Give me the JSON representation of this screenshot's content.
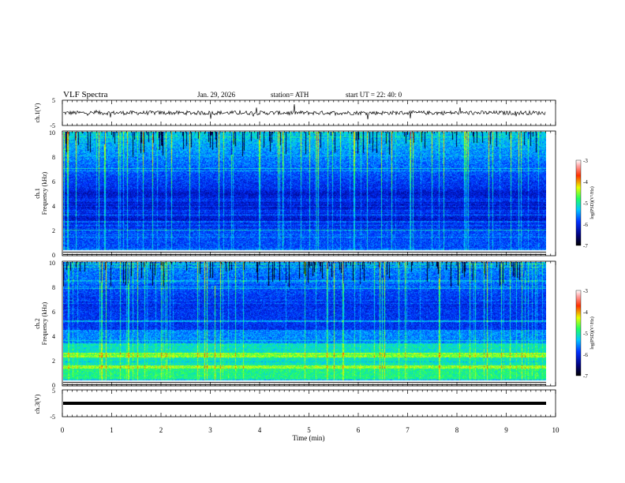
{
  "header": {
    "title": "VLF  Spectra",
    "date": "Jan. 29, 2026",
    "station": "station= ATH",
    "start": "start  UT  =   22: 40: 0"
  },
  "chart_data": [
    {
      "type": "line",
      "name": "ch1-waveform",
      "ylabel": "ch.1(V)",
      "ylim": [
        -5,
        5
      ],
      "yticks": [
        "5",
        "-5"
      ],
      "xlim": [
        0,
        10
      ],
      "baseline": 0
    },
    {
      "type": "heatmap",
      "name": "ch1-spectrogram",
      "ylabel": "ch.1\nFrequency  (kHz)",
      "ylim": [
        0,
        10
      ],
      "yticks": [
        "0",
        "2",
        "4",
        "6",
        "8",
        "10"
      ],
      "xlim": [
        0,
        9.8
      ],
      "colorbar": {
        "label": "log(PSD)(V²/Hz)",
        "range": [
          -7,
          -3
        ],
        "ticks": [
          "-3",
          "-4",
          "-5",
          "-6",
          "-7"
        ]
      }
    },
    {
      "type": "heatmap",
      "name": "ch2-spectrogram",
      "ylabel": "ch.2\nFrequency  (kHz)",
      "ylim": [
        0,
        10
      ],
      "yticks": [
        "0",
        "2",
        "4",
        "6",
        "8",
        "10"
      ],
      "xlim": [
        0,
        9.8
      ],
      "colorbar": {
        "label": "log(PSD)(V²/Hz)",
        "range": [
          -7,
          -3
        ],
        "ticks": [
          "-3",
          "-4",
          "-5",
          "-6",
          "-7"
        ]
      }
    },
    {
      "type": "line",
      "name": "ch3-waveform",
      "ylabel": "ch.3(V)",
      "ylim": [
        -5,
        5
      ],
      "yticks": [
        "5",
        "-5"
      ],
      "xlim": [
        0,
        10
      ],
      "baseline": -2
    }
  ],
  "xaxis": {
    "label": "Time  (min)",
    "range": [
      0,
      10
    ],
    "ticks": [
      "0",
      "1",
      "2",
      "3",
      "4",
      "5",
      "6",
      "7",
      "8",
      "9",
      "10"
    ]
  }
}
